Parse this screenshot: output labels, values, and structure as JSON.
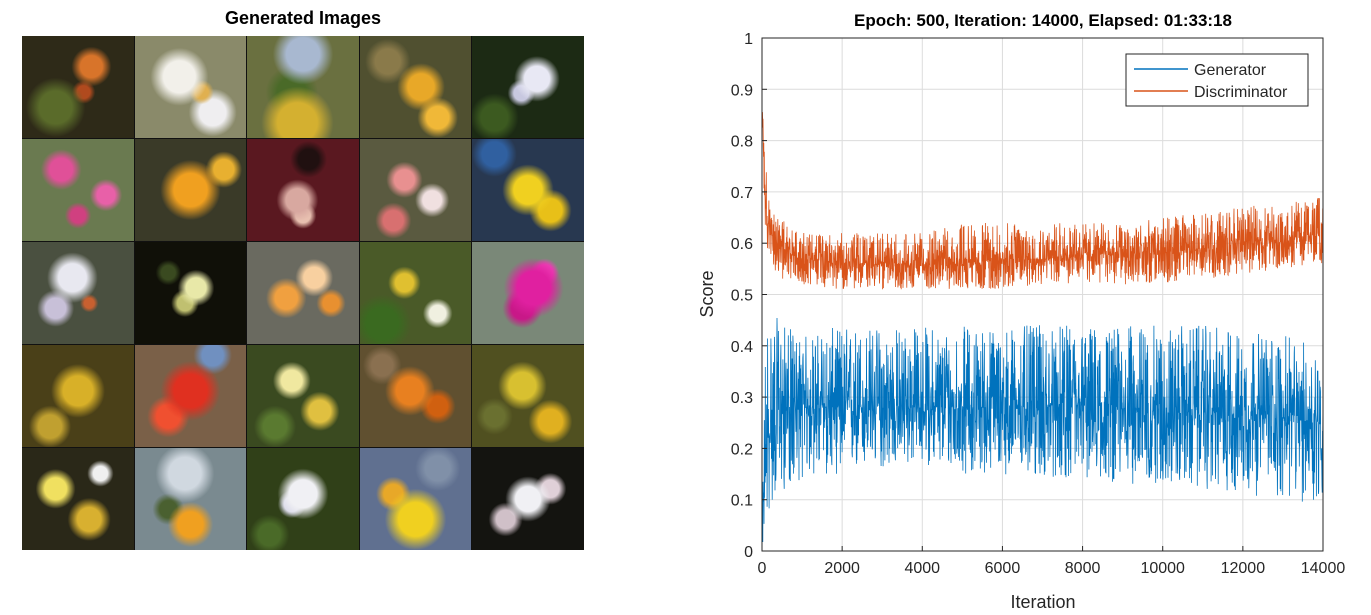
{
  "left_panel": {
    "title": "Generated Images",
    "tiles": [
      {
        "bg": "#2e2a18",
        "blobs": [
          [
            "#d8742a",
            0.62,
            0.3,
            0.2
          ],
          [
            "#5a6b2a",
            0.3,
            0.7,
            0.28
          ],
          [
            "#b04a1e",
            0.55,
            0.55,
            0.14
          ]
        ]
      },
      {
        "bg": "#8a8a6a",
        "blobs": [
          [
            "#f2f0ea",
            0.4,
            0.4,
            0.32
          ],
          [
            "#e0b050",
            0.6,
            0.55,
            0.14
          ],
          [
            "#efeef0",
            0.7,
            0.75,
            0.22
          ]
        ]
      },
      {
        "bg": "#6a7040",
        "blobs": [
          [
            "#a8b8d0",
            0.5,
            0.18,
            0.3
          ],
          [
            "#d4b030",
            0.45,
            0.85,
            0.34
          ],
          [
            "#4a6a28",
            0.4,
            0.55,
            0.3
          ]
        ]
      },
      {
        "bg": "#505030",
        "blobs": [
          [
            "#e8a828",
            0.55,
            0.5,
            0.3
          ],
          [
            "#f0b838",
            0.7,
            0.8,
            0.18
          ],
          [
            "#8a7a4a",
            0.25,
            0.25,
            0.2
          ]
        ]
      },
      {
        "bg": "#1c2a14",
        "blobs": [
          [
            "#e8e8f4",
            0.58,
            0.42,
            0.26
          ],
          [
            "#c8c8e0",
            0.44,
            0.56,
            0.16
          ],
          [
            "#3c5a20",
            0.2,
            0.8,
            0.2
          ]
        ]
      },
      {
        "bg": "#6a7a50",
        "blobs": [
          [
            "#e05098",
            0.35,
            0.3,
            0.2
          ],
          [
            "#e860a8",
            0.75,
            0.55,
            0.16
          ],
          [
            "#d04080",
            0.5,
            0.75,
            0.14
          ]
        ]
      },
      {
        "bg": "#3a3a28",
        "blobs": [
          [
            "#f0a020",
            0.5,
            0.5,
            0.4
          ],
          [
            "#3050a0",
            0.48,
            0.5,
            0.12
          ],
          [
            "#e8b030",
            0.8,
            0.3,
            0.16
          ]
        ]
      },
      {
        "bg": "#5a1820",
        "blobs": [
          [
            "#d8a8a0",
            0.45,
            0.6,
            0.24
          ],
          [
            "#201010",
            0.55,
            0.2,
            0.18
          ],
          [
            "#e8c0b0",
            0.5,
            0.75,
            0.14
          ]
        ]
      },
      {
        "bg": "#5a5a40",
        "blobs": [
          [
            "#e89090",
            0.4,
            0.4,
            0.2
          ],
          [
            "#f0e0e0",
            0.65,
            0.6,
            0.18
          ],
          [
            "#d87070",
            0.3,
            0.8,
            0.16
          ]
        ]
      },
      {
        "bg": "#283850",
        "blobs": [
          [
            "#f0d020",
            0.5,
            0.5,
            0.34
          ],
          [
            "#3060a0",
            0.2,
            0.15,
            0.18
          ],
          [
            "#e8c018",
            0.7,
            0.7,
            0.2
          ]
        ]
      },
      {
        "bg": "#4a5040",
        "blobs": [
          [
            "#e8e8f0",
            0.45,
            0.35,
            0.28
          ],
          [
            "#c8c0d8",
            0.3,
            0.65,
            0.18
          ],
          [
            "#c86030",
            0.6,
            0.6,
            0.1
          ]
        ]
      },
      {
        "bg": "#101008",
        "blobs": [
          [
            "#e8e8a8",
            0.55,
            0.45,
            0.22
          ],
          [
            "#c0c070",
            0.45,
            0.6,
            0.16
          ],
          [
            "#3a4a20",
            0.3,
            0.3,
            0.12
          ]
        ]
      },
      {
        "bg": "#6a6a60",
        "blobs": [
          [
            "#f0a040",
            0.35,
            0.55,
            0.22
          ],
          [
            "#f8d0a0",
            0.6,
            0.35,
            0.2
          ],
          [
            "#e89030",
            0.75,
            0.6,
            0.14
          ]
        ]
      },
      {
        "bg": "#4a5a28",
        "blobs": [
          [
            "#e0c030",
            0.4,
            0.4,
            0.18
          ],
          [
            "#f0f0e0",
            0.7,
            0.7,
            0.14
          ],
          [
            "#3a6a20",
            0.2,
            0.8,
            0.24
          ]
        ]
      },
      {
        "bg": "#7a8878",
        "blobs": [
          [
            "#e020a0",
            0.55,
            0.45,
            0.36
          ],
          [
            "#c81888",
            0.45,
            0.65,
            0.22
          ],
          [
            "#f040b8",
            0.65,
            0.3,
            0.14
          ]
        ]
      },
      {
        "bg": "#4a4018",
        "blobs": [
          [
            "#d8b028",
            0.5,
            0.45,
            0.34
          ],
          [
            "#2a2008",
            0.45,
            0.55,
            0.14
          ],
          [
            "#c0a030",
            0.25,
            0.8,
            0.18
          ]
        ]
      },
      {
        "bg": "#7a6048",
        "blobs": [
          [
            "#e03020",
            0.5,
            0.45,
            0.38
          ],
          [
            "#f05030",
            0.3,
            0.7,
            0.2
          ],
          [
            "#7090c0",
            0.7,
            0.1,
            0.16
          ]
        ]
      },
      {
        "bg": "#3a4a20",
        "blobs": [
          [
            "#f0e8a0",
            0.4,
            0.35,
            0.2
          ],
          [
            "#e0c040",
            0.65,
            0.65,
            0.2
          ],
          [
            "#5a7a30",
            0.25,
            0.8,
            0.18
          ]
        ]
      },
      {
        "bg": "#605030",
        "blobs": [
          [
            "#e88020",
            0.45,
            0.45,
            0.3
          ],
          [
            "#d06010",
            0.7,
            0.6,
            0.18
          ],
          [
            "#8a7050",
            0.2,
            0.2,
            0.16
          ]
        ]
      },
      {
        "bg": "#505020",
        "blobs": [
          [
            "#d8c030",
            0.45,
            0.4,
            0.28
          ],
          [
            "#e0b020",
            0.7,
            0.75,
            0.2
          ],
          [
            "#6a7030",
            0.2,
            0.7,
            0.16
          ]
        ]
      },
      {
        "bg": "#2a2818",
        "blobs": [
          [
            "#f0e060",
            0.3,
            0.4,
            0.2
          ],
          [
            "#d8b030",
            0.6,
            0.7,
            0.22
          ],
          [
            "#f0f0f0",
            0.7,
            0.25,
            0.12
          ]
        ]
      },
      {
        "bg": "#7a8a90",
        "blobs": [
          [
            "#d0d8e0",
            0.45,
            0.25,
            0.3
          ],
          [
            "#f0a020",
            0.5,
            0.75,
            0.24
          ],
          [
            "#4a6030",
            0.3,
            0.6,
            0.16
          ]
        ]
      },
      {
        "bg": "#304018",
        "blobs": [
          [
            "#f0f0f4",
            0.5,
            0.45,
            0.32
          ],
          [
            "#d8d8e8",
            0.4,
            0.55,
            0.16
          ],
          [
            "#4a6a28",
            0.2,
            0.85,
            0.16
          ]
        ]
      },
      {
        "bg": "#607090",
        "blobs": [
          [
            "#f0d020",
            0.5,
            0.7,
            0.34
          ],
          [
            "#e8a828",
            0.3,
            0.45,
            0.18
          ],
          [
            "#8090a8",
            0.7,
            0.2,
            0.2
          ]
        ]
      },
      {
        "bg": "#141410",
        "blobs": [
          [
            "#f0f0f4",
            0.5,
            0.5,
            0.3
          ],
          [
            "#e0d0d8",
            0.7,
            0.4,
            0.16
          ],
          [
            "#d0c0c8",
            0.3,
            0.7,
            0.16
          ]
        ]
      }
    ]
  },
  "chart_data": {
    "type": "line",
    "title": "Epoch: 500, Iteration: 14000, Elapsed: 01:33:18",
    "xlabel": "Iteration",
    "ylabel": "Score",
    "xlim": [
      0,
      14000
    ],
    "ylim": [
      0,
      1
    ],
    "xticks": [
      0,
      2000,
      4000,
      6000,
      8000,
      10000,
      12000,
      14000
    ],
    "yticks": [
      0,
      0.1,
      0.2,
      0.3,
      0.4,
      0.5,
      0.6,
      0.7,
      0.8,
      0.9,
      1
    ],
    "grid": true,
    "legend_position": "top-right",
    "series": [
      {
        "name": "Generator",
        "color": "#0072BD",
        "x": [
          0,
          100,
          300,
          600,
          1000,
          2000,
          3000,
          4000,
          5000,
          6000,
          7000,
          8000,
          9000,
          10000,
          11000,
          12000,
          13000,
          14000
        ],
        "center": [
          0.02,
          0.2,
          0.26,
          0.28,
          0.28,
          0.28,
          0.28,
          0.28,
          0.28,
          0.28,
          0.28,
          0.28,
          0.28,
          0.27,
          0.27,
          0.27,
          0.26,
          0.25
        ],
        "low": [
          0.0,
          0.05,
          0.1,
          0.12,
          0.14,
          0.15,
          0.16,
          0.17,
          0.15,
          0.15,
          0.14,
          0.14,
          0.13,
          0.13,
          0.12,
          0.11,
          0.1,
          0.08
        ],
        "high": [
          0.05,
          0.48,
          0.46,
          0.44,
          0.42,
          0.44,
          0.44,
          0.44,
          0.44,
          0.44,
          0.44,
          0.44,
          0.44,
          0.44,
          0.44,
          0.43,
          0.42,
          0.4
        ]
      },
      {
        "name": "Discriminator",
        "color": "#D95319",
        "x": [
          0,
          100,
          300,
          600,
          1000,
          2000,
          3000,
          4000,
          5000,
          6000,
          7000,
          8000,
          9000,
          10000,
          11000,
          12000,
          13000,
          14000
        ],
        "center": [
          0.86,
          0.66,
          0.6,
          0.58,
          0.57,
          0.56,
          0.56,
          0.56,
          0.56,
          0.57,
          0.57,
          0.58,
          0.58,
          0.58,
          0.59,
          0.6,
          0.61,
          0.62
        ],
        "low": [
          0.8,
          0.6,
          0.54,
          0.52,
          0.52,
          0.51,
          0.51,
          0.51,
          0.51,
          0.51,
          0.52,
          0.52,
          0.52,
          0.52,
          0.53,
          0.54,
          0.55,
          0.56
        ],
        "high": [
          0.88,
          0.75,
          0.66,
          0.64,
          0.62,
          0.62,
          0.62,
          0.62,
          0.64,
          0.64,
          0.64,
          0.64,
          0.64,
          0.65,
          0.66,
          0.67,
          0.68,
          0.69
        ]
      }
    ]
  }
}
